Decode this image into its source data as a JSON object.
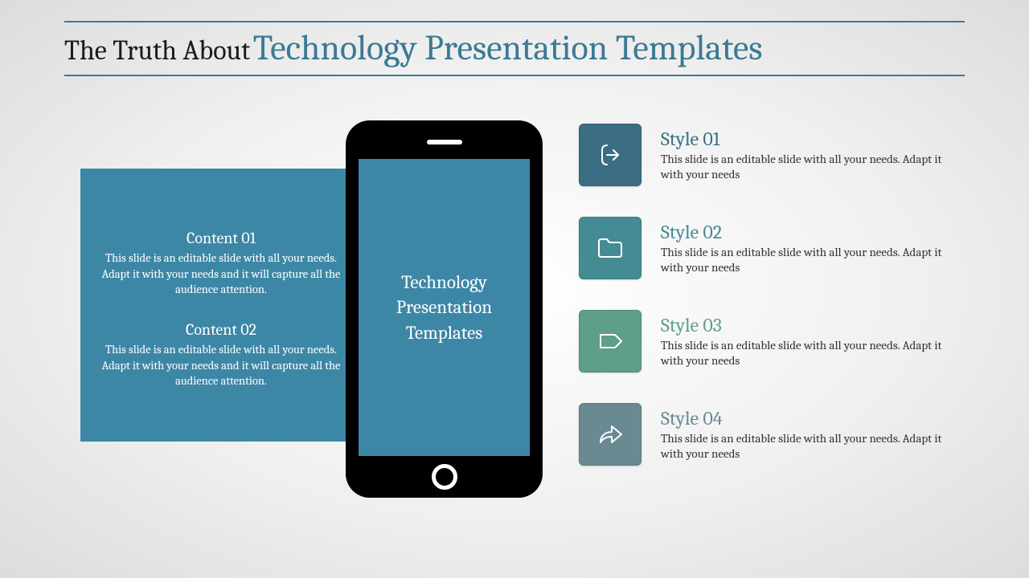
{
  "colors": {
    "title_accent": "#3a7a94",
    "title_rule": "#3a7a94",
    "panel_bg": "#3d87a6",
    "phone_screen": "#3d87a6",
    "text_dark": "#1a1a1a",
    "body_text": "#333333"
  },
  "title": {
    "small": "The Truth About",
    "big": "Technology Presentation Templates"
  },
  "left_panel": {
    "items": [
      {
        "heading": "Content 01",
        "body": "This slide is an editable slide with all your needs. Adapt it with your needs and it will capture all the audience attention."
      },
      {
        "heading": "Content 02",
        "body": "This slide is an editable slide with all your needs. Adapt it with your needs and it will capture all the audience attention."
      }
    ]
  },
  "phone": {
    "screen_text": "Technology Presentation Templates"
  },
  "styles": [
    {
      "label": "Style 01",
      "desc": "This slide is an editable slide with all your needs. Adapt it with your needs",
      "icon": "exit-arrow",
      "box_color": "#3b6e84",
      "label_color": "#3b6e84"
    },
    {
      "label": "Style 02",
      "desc": "This slide is an editable slide with all your needs. Adapt it with your needs",
      "icon": "folder",
      "box_color": "#458b93",
      "label_color": "#458b93"
    },
    {
      "label": "Style 03",
      "desc": "This slide is an editable slide with all your needs. Adapt it with your needs",
      "icon": "tag",
      "box_color": "#5e9e8a",
      "label_color": "#5e9e8a"
    },
    {
      "label": "Style 04",
      "desc": "This slide is an editable slide with all your needs. Adapt it with your needs",
      "icon": "share-arrow",
      "box_color": "#6a8a93",
      "label_color": "#6a8a93"
    }
  ]
}
